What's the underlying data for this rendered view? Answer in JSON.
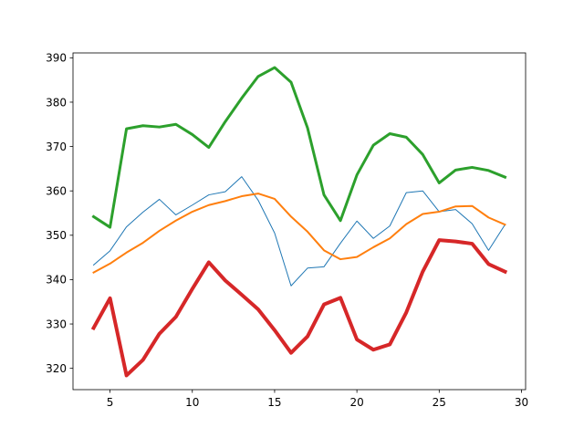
{
  "chart_data": {
    "type": "line",
    "title": "",
    "xlabel": "",
    "ylabel": "",
    "xlim": [
      2.75,
      30.25
    ],
    "ylim": [
      315.2,
      391.1
    ],
    "grid": false,
    "legend": "none",
    "x_ticks": [
      5,
      10,
      15,
      20,
      25,
      30
    ],
    "y_ticks": [
      320,
      330,
      340,
      350,
      360,
      370,
      380,
      390
    ],
    "x": [
      4,
      5,
      6,
      7,
      8,
      9,
      10,
      11,
      12,
      13,
      14,
      15,
      16,
      17,
      18,
      19,
      20,
      21,
      22,
      23,
      24,
      25,
      26,
      27,
      28,
      29
    ],
    "series": [
      {
        "color": "#1f77b4",
        "line_weight": "thin",
        "values": [
          343.3,
          346.5,
          351.9,
          355.2,
          358.1,
          354.6,
          356.8,
          359.1,
          359.8,
          363.2,
          357.9,
          350.5,
          338.6,
          342.6,
          342.9,
          348.2,
          353.2,
          349.3,
          352.1,
          359.6,
          360.0,
          355.3,
          355.8,
          352.6,
          346.6,
          352.4
        ]
      },
      {
        "color": "#ff7f0e",
        "line_weight": "medium",
        "values": [
          341.6,
          343.6,
          346.1,
          348.3,
          351.0,
          353.3,
          355.3,
          356.8,
          357.7,
          358.8,
          359.4,
          358.2,
          354.2,
          350.8,
          346.6,
          344.6,
          345.1,
          347.3,
          349.3,
          352.5,
          354.8,
          355.3,
          356.5,
          356.6,
          354.0,
          352.4
        ]
      },
      {
        "color": "#2ca02c",
        "line_weight": "thick",
        "values": [
          354.2,
          351.8,
          374.0,
          374.7,
          374.4,
          375.0,
          372.7,
          369.8,
          375.6,
          380.9,
          385.8,
          387.8,
          384.5,
          374.2,
          359.1,
          353.3,
          363.6,
          370.3,
          372.9,
          372.1,
          368.2,
          361.8,
          364.7,
          365.3,
          364.6,
          363.1
        ]
      },
      {
        "color": "#d62728",
        "line_weight": "extra-thick",
        "values": [
          329.1,
          335.8,
          318.4,
          321.9,
          327.8,
          331.6,
          337.9,
          343.9,
          339.8,
          336.6,
          333.3,
          328.6,
          323.5,
          327.2,
          334.4,
          335.9,
          326.5,
          324.2,
          325.4,
          332.6,
          341.8,
          348.9,
          348.6,
          348.1,
          343.5,
          341.8
        ]
      }
    ]
  }
}
